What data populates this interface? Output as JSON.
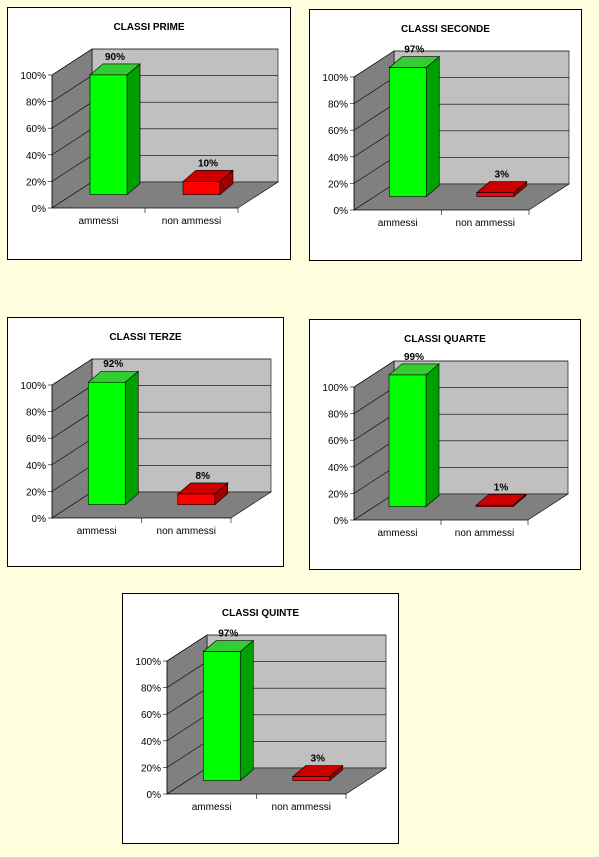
{
  "colors": {
    "page_background": "#FFFFE0",
    "ammessi_front": "#00FF00",
    "ammessi_side": "#00A000",
    "ammessi_top": "#33CC33",
    "non_ammessi_front": "#FF0000",
    "non_ammessi_side": "#A00000",
    "non_ammessi_top": "#CC0000",
    "wall": "#C0C0C0",
    "floor": "#808080"
  },
  "chart_data": [
    {
      "type": "bar",
      "title": "CLASSI PRIME",
      "categories": [
        "ammessi",
        "non ammessi"
      ],
      "values": [
        90,
        10
      ],
      "data_labels": [
        "90%",
        "10%"
      ],
      "yticks": [
        "0%",
        "20%",
        "40%",
        "60%",
        "80%",
        "100%"
      ],
      "ylim": [
        0,
        100
      ],
      "grid": true,
      "style": "3d-column"
    },
    {
      "type": "bar",
      "title": "CLASSI SECONDE",
      "categories": [
        "ammessi",
        "non ammessi"
      ],
      "values": [
        97,
        3
      ],
      "data_labels": [
        "97%",
        "3%"
      ],
      "yticks": [
        "0%",
        "20%",
        "40%",
        "60%",
        "80%",
        "100%"
      ],
      "ylim": [
        0,
        100
      ],
      "grid": true,
      "style": "3d-column"
    },
    {
      "type": "bar",
      "title": "CLASSI TERZE",
      "categories": [
        "ammessi",
        "non ammessi"
      ],
      "values": [
        92,
        8
      ],
      "data_labels": [
        "92%",
        "8%"
      ],
      "yticks": [
        "0%",
        "20%",
        "40%",
        "60%",
        "80%",
        "100%"
      ],
      "ylim": [
        0,
        100
      ],
      "grid": true,
      "style": "3d-column"
    },
    {
      "type": "bar",
      "title": "CLASSI QUARTE",
      "categories": [
        "ammessi",
        "non ammessi"
      ],
      "values": [
        99,
        1
      ],
      "data_labels": [
        "99%",
        "1%"
      ],
      "yticks": [
        "0%",
        "20%",
        "40%",
        "60%",
        "80%",
        "100%"
      ],
      "ylim": [
        0,
        100
      ],
      "grid": true,
      "style": "3d-column"
    },
    {
      "type": "bar",
      "title": "CLASSI QUINTE",
      "categories": [
        "ammessi",
        "non ammessi"
      ],
      "values": [
        97,
        3
      ],
      "data_labels": [
        "97%",
        "3%"
      ],
      "yticks": [
        "0%",
        "20%",
        "40%",
        "60%",
        "80%",
        "100%"
      ],
      "ylim": [
        0,
        100
      ],
      "grid": true,
      "style": "3d-column"
    }
  ]
}
